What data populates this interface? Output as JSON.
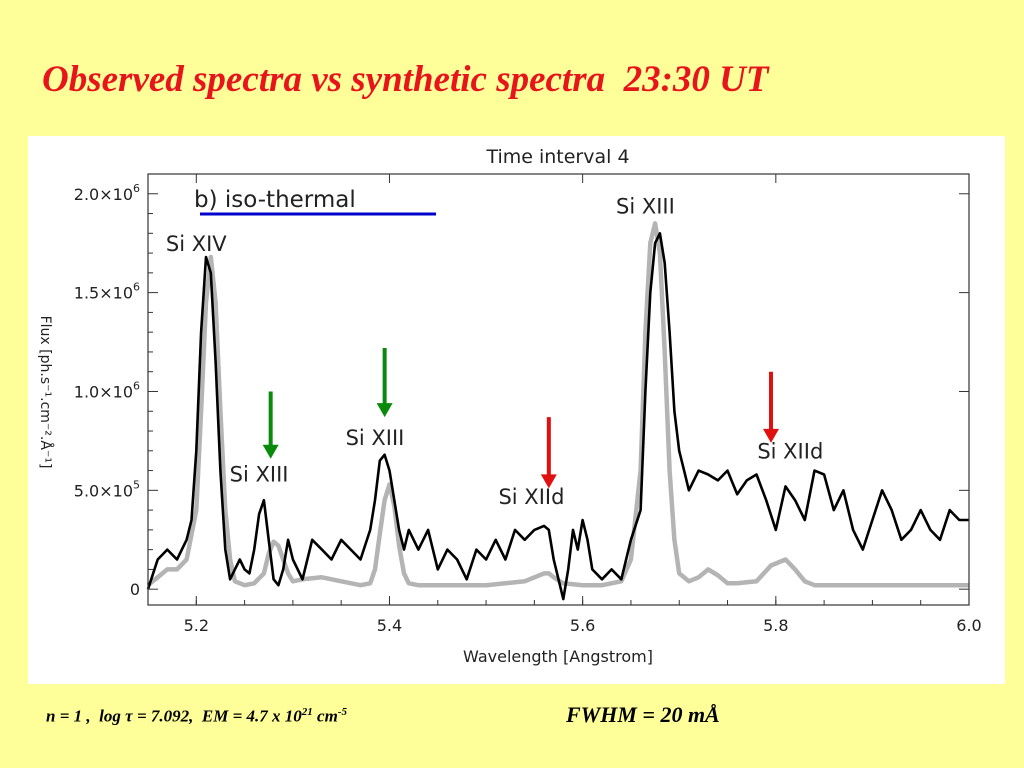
{
  "slide": {
    "title": "Observed spectra vs synthetic spectra  23:30 UT"
  },
  "caption": {
    "n": "n = 1 ,",
    "log": "log",
    "tau": "τ",
    "tau_value": " = 7.092,  EM = 4.7 x 10",
    "em_exp": "21",
    "unit": " cm",
    "unit_exp": "-5",
    "fwhm": "FWHM = 20 mÅ"
  },
  "colors": {
    "background": "#FFFF99",
    "title": "#E8141C",
    "observed": "#000000",
    "synthetic": "#B4B4B4",
    "underline": "#0000CC",
    "arrow_green": "#0A8A0A",
    "arrow_red": "#E01010"
  },
  "chart_data": {
    "type": "line",
    "title": "Time interval 4",
    "subtitle": "b) iso-thermal",
    "xlabel": "Wavelength  [Angstrom]",
    "ylabel": "Flux  [ph.s⁻¹.cm⁻².Å⁻¹]",
    "xlim": [
      5.15,
      6.0
    ],
    "ylim": [
      -80000,
      2100000.0
    ],
    "x_ticks": [
      5.2,
      5.4,
      5.6,
      5.8,
      6.0
    ],
    "x_tick_labels": [
      "5.2",
      "5.4",
      "5.6",
      "5.8",
      "6.0"
    ],
    "y_ticks": [
      0,
      500000,
      1000000,
      1500000,
      2000000
    ],
    "y_tick_labels": [
      {
        "mantissa": "0",
        "exp": ""
      },
      {
        "mantissa": "5.0×10",
        "exp": "5"
      },
      {
        "mantissa": "1.0×10",
        "exp": "6"
      },
      {
        "mantissa": "1.5×10",
        "exp": "6"
      },
      {
        "mantissa": "2.0×10",
        "exp": "6"
      }
    ],
    "series": [
      {
        "role": "observed",
        "x": [
          5.15,
          5.16,
          5.17,
          5.18,
          5.19,
          5.195,
          5.2,
          5.205,
          5.21,
          5.215,
          5.22,
          5.225,
          5.23,
          5.235,
          5.24,
          5.245,
          5.25,
          5.255,
          5.26,
          5.265,
          5.27,
          5.275,
          5.28,
          5.285,
          5.29,
          5.295,
          5.3,
          5.31,
          5.32,
          5.33,
          5.34,
          5.35,
          5.36,
          5.37,
          5.38,
          5.385,
          5.39,
          5.395,
          5.4,
          5.405,
          5.41,
          5.415,
          5.42,
          5.43,
          5.44,
          5.45,
          5.46,
          5.47,
          5.48,
          5.49,
          5.5,
          5.51,
          5.52,
          5.53,
          5.54,
          5.55,
          5.56,
          5.565,
          5.57,
          5.575,
          5.58,
          5.585,
          5.59,
          5.595,
          5.6,
          5.605,
          5.61,
          5.62,
          5.63,
          5.64,
          5.65,
          5.66,
          5.665,
          5.67,
          5.675,
          5.68,
          5.685,
          5.69,
          5.695,
          5.7,
          5.705,
          5.71,
          5.72,
          5.73,
          5.74,
          5.75,
          5.76,
          5.77,
          5.78,
          5.79,
          5.8,
          5.81,
          5.82,
          5.83,
          5.84,
          5.85,
          5.86,
          5.87,
          5.88,
          5.89,
          5.9,
          5.91,
          5.92,
          5.93,
          5.94,
          5.95,
          5.96,
          5.97,
          5.98,
          5.99,
          6.0
        ],
        "y": [
          0,
          150000,
          200000,
          150000,
          250000,
          350000,
          700000,
          1300000,
          1680000,
          1600000,
          1150000,
          600000,
          200000,
          50000,
          100000,
          150000,
          100000,
          80000,
          200000,
          380000,
          450000,
          250000,
          50000,
          20000,
          100000,
          250000,
          150000,
          50000,
          250000,
          200000,
          150000,
          250000,
          200000,
          150000,
          300000,
          450000,
          650000,
          680000,
          600000,
          450000,
          300000,
          200000,
          300000,
          200000,
          300000,
          100000,
          200000,
          150000,
          50000,
          200000,
          150000,
          250000,
          150000,
          300000,
          250000,
          300000,
          320000,
          300000,
          150000,
          50000,
          -50000,
          100000,
          300000,
          200000,
          350000,
          250000,
          100000,
          50000,
          100000,
          50000,
          250000,
          400000,
          1000000,
          1500000,
          1750000,
          1800000,
          1650000,
          1300000,
          900000,
          700000,
          600000,
          500000,
          600000,
          580000,
          550000,
          600000,
          480000,
          550000,
          580000,
          450000,
          300000,
          520000,
          450000,
          350000,
          600000,
          580000,
          400000,
          500000,
          300000,
          200000,
          350000,
          500000,
          400000,
          250000,
          300000,
          400000,
          300000,
          250000,
          400000,
          350000,
          350000
        ]
      },
      {
        "role": "synthetic",
        "x": [
          5.15,
          5.17,
          5.18,
          5.19,
          5.2,
          5.205,
          5.21,
          5.215,
          5.22,
          5.225,
          5.23,
          5.235,
          5.24,
          5.25,
          5.26,
          5.27,
          5.275,
          5.28,
          5.285,
          5.29,
          5.295,
          5.3,
          5.31,
          5.33,
          5.35,
          5.37,
          5.38,
          5.385,
          5.39,
          5.395,
          5.4,
          5.405,
          5.41,
          5.415,
          5.42,
          5.43,
          5.5,
          5.54,
          5.56,
          5.565,
          5.57,
          5.58,
          5.6,
          5.62,
          5.64,
          5.65,
          5.66,
          5.665,
          5.67,
          5.675,
          5.68,
          5.685,
          5.69,
          5.695,
          5.7,
          5.71,
          5.72,
          5.73,
          5.74,
          5.75,
          5.76,
          5.78,
          5.795,
          5.81,
          5.82,
          5.83,
          5.84,
          5.86,
          6.0
        ],
        "y": [
          20000,
          100000,
          100000,
          150000,
          400000,
          900000,
          1450000,
          1680000,
          1450000,
          900000,
          400000,
          150000,
          40000,
          20000,
          30000,
          80000,
          180000,
          240000,
          220000,
          150000,
          80000,
          40000,
          50000,
          60000,
          40000,
          20000,
          30000,
          100000,
          280000,
          450000,
          530000,
          420000,
          220000,
          80000,
          30000,
          20000,
          20000,
          40000,
          80000,
          80000,
          60000,
          30000,
          20000,
          20000,
          40000,
          150000,
          600000,
          1300000,
          1750000,
          1850000,
          1700000,
          1200000,
          600000,
          250000,
          80000,
          40000,
          60000,
          100000,
          70000,
          30000,
          30000,
          40000,
          120000,
          150000,
          100000,
          40000,
          20000,
          20000,
          20000
        ]
      }
    ],
    "annotations": [
      {
        "text": "Si  XIV",
        "x": 5.2,
        "y": 1710000.0
      },
      {
        "text": "Si  XIII",
        "x": 5.265,
        "y": 545000.0
      },
      {
        "text": "Si  XIII",
        "x": 5.385,
        "y": 730000.0
      },
      {
        "text": "Si  XIId",
        "x": 5.547,
        "y": 430000.0
      },
      {
        "text": "Si  XIII",
        "x": 5.665,
        "y": 1900000.0
      },
      {
        "text": "Si  XIId",
        "x": 5.815,
        "y": 660000.0
      }
    ],
    "arrows": [
      {
        "color": "green",
        "x": 5.277,
        "y_top": 1000000.0,
        "y_bottom": 660000.0
      },
      {
        "color": "green",
        "x": 5.395,
        "y_top": 1220000.0,
        "y_bottom": 870000.0
      },
      {
        "color": "red",
        "x": 5.565,
        "y_top": 870000.0,
        "y_bottom": 510000.0
      },
      {
        "color": "red",
        "x": 5.795,
        "y_top": 1100000.0,
        "y_bottom": 740000.0
      }
    ]
  }
}
